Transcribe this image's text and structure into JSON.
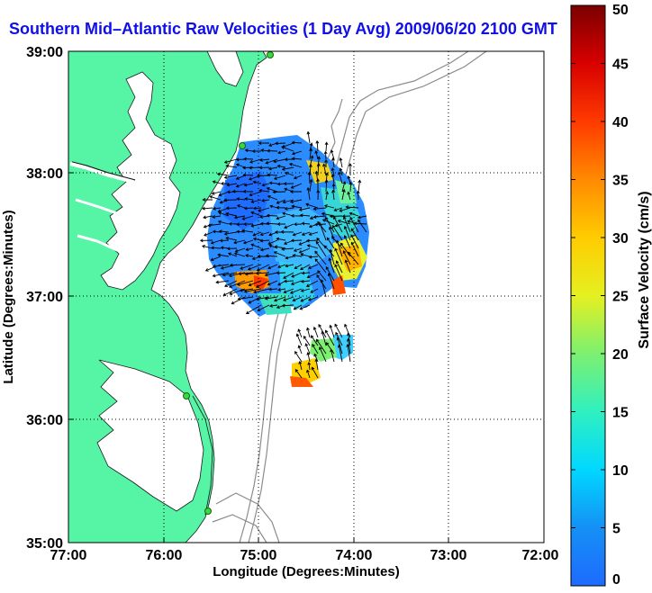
{
  "title": "Southern Mid–Atlantic Raw Velocities (1 Day Avg) 2009/06/20 2100 GMT",
  "map": {
    "x_axis_label": "Longitude (Degrees:Minutes)",
    "y_axis_label": "Latitude (Degrees:Minutes)",
    "lon_range": [
      -77,
      -72
    ],
    "lat_range": [
      35,
      39
    ],
    "x_ticks": [
      "77:00",
      "76:00",
      "75:00",
      "74:00",
      "73:00",
      "72:00"
    ],
    "y_ticks": [
      "35:00",
      "36:00",
      "37:00",
      "38:00",
      "39:00"
    ],
    "grid": "dotted",
    "land_color": "#55f5a5",
    "station_color": "#3fd63f"
  },
  "colorbar": {
    "label": "Surface Velocity (cm/s)",
    "min": 0,
    "max": 50,
    "ticks": [
      "0",
      "5",
      "10",
      "15",
      "20",
      "25",
      "30",
      "35",
      "40",
      "45",
      "50"
    ]
  }
}
